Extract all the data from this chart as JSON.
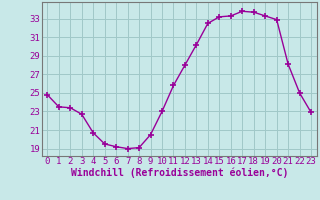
{
  "hours": [
    0,
    1,
    2,
    3,
    4,
    5,
    6,
    7,
    8,
    9,
    10,
    11,
    12,
    13,
    14,
    15,
    16,
    17,
    18,
    19,
    20,
    21,
    22,
    23
  ],
  "values": [
    24.8,
    23.5,
    23.4,
    22.7,
    20.7,
    19.5,
    19.2,
    19.0,
    19.1,
    20.5,
    23.0,
    25.8,
    28.0,
    30.2,
    32.5,
    33.2,
    33.3,
    33.8,
    33.7,
    33.3,
    32.9,
    28.1,
    25.0,
    22.9
  ],
  "line_color": "#990099",
  "marker": "+",
  "marker_size": 4,
  "marker_lw": 1.2,
  "bg_color": "#c8e8e8",
  "grid_color": "#a0c8c8",
  "ylabel_ticks": [
    19,
    21,
    23,
    25,
    27,
    29,
    31,
    33
  ],
  "ylim": [
    18.2,
    34.8
  ],
  "xlim": [
    -0.5,
    23.5
  ],
  "xlabel": "Windchill (Refroidissement éolien,°C)",
  "tick_fontsize": 6.5,
  "label_fontsize": 7.0,
  "line_width": 1.0
}
